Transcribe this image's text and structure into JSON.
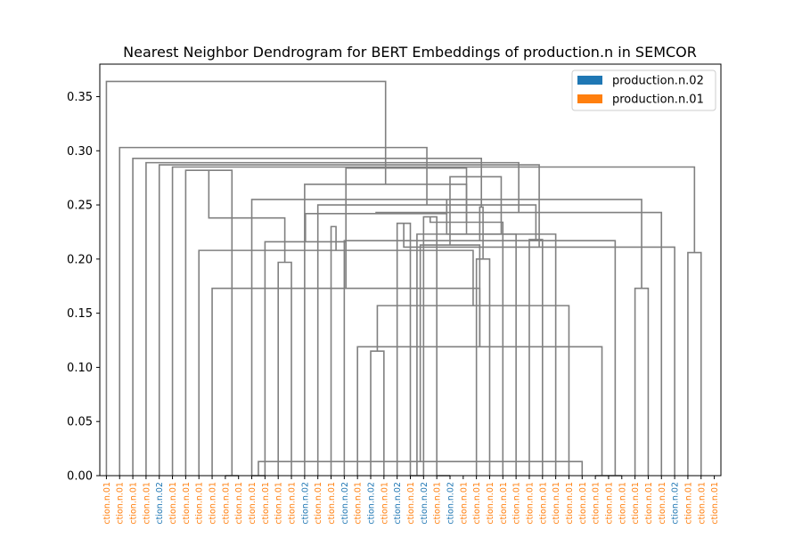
{
  "chart_data": {
    "type": "dendrogram",
    "title": "Nearest Neighbor Dendrogram for BERT Embeddings of production.n in SEMCOR",
    "xlabel": "",
    "ylabel": "",
    "ylim": [
      0,
      0.38
    ],
    "yticks": [
      0.0,
      0.05,
      0.1,
      0.15,
      0.2,
      0.25,
      0.3,
      0.35
    ],
    "ytick_labels": [
      "0.00",
      "0.05",
      "0.10",
      "0.15",
      "0.20",
      "0.25",
      "0.30",
      "0.35"
    ],
    "grid": false,
    "legend_position": "top-right",
    "legend": [
      {
        "label": "production.n.02",
        "color": "#1f77b4"
      },
      {
        "label": "production.n.01",
        "color": "#ff7f0e"
      }
    ],
    "link_color": "#808080",
    "leaf_labels": [
      "ction.n.01",
      "ction.n.01",
      "ction.n.01",
      "ction.n.01",
      "ction.n.02",
      "ction.n.01",
      "ction.n.01",
      "ction.n.01",
      "ction.n.01",
      "ction.n.01",
      "ction.n.01",
      "ction.n.01",
      "ction.n.01",
      "ction.n.01",
      "ction.n.01",
      "ction.n.02",
      "ction.n.01",
      "ction.n.01",
      "ction.n.02",
      "ction.n.01",
      "ction.n.02",
      "ction.n.01",
      "ction.n.02",
      "ction.n.01",
      "ction.n.02",
      "ction.n.01",
      "ction.n.02",
      "ction.n.01",
      "ction.n.01",
      "ction.n.01",
      "ction.n.01",
      "ction.n.01",
      "ction.n.01",
      "ction.n.01",
      "ction.n.01",
      "ction.n.01",
      "ction.n.01",
      "ction.n.01",
      "ction.n.01",
      "ction.n.01",
      "ction.n.01",
      "ction.n.01",
      "ction.n.01",
      "ction.n.02",
      "ction.n.01",
      "ction.n.01",
      "ction.n.01"
    ],
    "merges": [
      [
        11,
        12,
        0.0
      ],
      [
        37,
        38,
        0.0
      ],
      [
        38,
        39,
        0.0
      ],
      [
        20,
        21,
        0.115
      ],
      [
        19,
        48,
        0.119
      ],
      [
        36,
        47,
        0.013
      ],
      [
        35,
        50,
        0.157
      ],
      [
        9,
        10,
        0.0
      ],
      [
        8,
        51,
        0.173
      ],
      [
        40,
        41,
        0.173
      ],
      [
        51,
        52,
        0.213
      ],
      [
        7,
        53,
        0.208
      ],
      [
        6,
        54,
        0.282
      ],
      [
        13,
        14,
        0.197
      ],
      [
        12,
        55,
        0.216
      ],
      [
        11,
        56,
        0.255
      ],
      [
        18,
        49,
        0.217
      ],
      [
        17,
        58,
        0.23
      ],
      [
        23,
        24,
        0.0
      ],
      [
        24,
        25,
        0.239
      ],
      [
        59,
        60,
        0.238
      ],
      [
        25,
        26,
        0.0
      ],
      [
        22,
        23,
        0.233
      ],
      [
        61,
        62,
        0.242
      ],
      [
        28,
        29,
        0.2
      ],
      [
        32,
        33,
        0.218
      ],
      [
        31,
        65,
        0.223
      ],
      [
        34,
        62,
        0.223
      ],
      [
        30,
        66,
        0.234
      ],
      [
        44,
        45,
        0.206
      ],
      [
        43,
        69,
        0.211
      ],
      [
        42,
        70,
        0.243
      ],
      [
        63,
        71,
        0.248
      ],
      [
        16,
        72,
        0.25
      ],
      [
        15,
        73,
        0.269
      ],
      [
        57,
        74,
        0.276
      ],
      [
        55,
        75,
        0.284
      ],
      [
        5,
        76,
        0.285
      ],
      [
        4,
        77,
        0.287
      ],
      [
        3,
        78,
        0.289
      ],
      [
        2,
        79,
        0.293
      ],
      [
        1,
        80,
        0.303
      ],
      [
        0,
        81,
        0.364
      ]
    ],
    "links": [
      {
        "x1": 0,
        "x2": 2.25,
        "h1": 0.0,
        "h2": 0.0,
        "h": 0.364
      },
      {
        "x1": 1,
        "x2": 3.5,
        "h1": 0.0,
        "h2": 0.0,
        "h": 0.303
      },
      {
        "x1": 2,
        "x2": 5.0,
        "h1": 0.0,
        "h2": 0.0,
        "h": 0.293
      },
      {
        "x1": 3,
        "x2": 4,
        "h1": 0.0,
        "h2": 0.0,
        "h": 0.0
      },
      {
        "x1": 3.5,
        "x2": 7.0,
        "h1": 0.0,
        "h2": 0.0,
        "h": 0.289
      },
      {
        "x1": 5,
        "x2": 9.0,
        "h1": 0.0,
        "h2": 0.0,
        "h": 0.287
      },
      {
        "x1": 6,
        "x2": 9.5,
        "h1": 0.0,
        "h2": 0.0,
        "h": 0.282
      },
      {
        "x1": 7,
        "x2": 10,
        "h1": 0.0,
        "h2": 0.0,
        "h": 0.208
      },
      {
        "x1": 9,
        "x2": 10,
        "h1": 0.0,
        "h2": 0.0,
        "h": 0.173
      },
      {
        "x1": 10,
        "x2": 11,
        "h1": 0.0,
        "h2": 0.0,
        "h": 0.0
      },
      {
        "x1": 6.5,
        "x2": 14.5,
        "h1": 0.282,
        "h2": 0.0,
        "h": 0.285
      },
      {
        "x1": 12,
        "x2": 13.75,
        "h1": 0.0,
        "h2": 0.0,
        "h": 0.255
      },
      {
        "x1": 13,
        "x2": 14.5,
        "h1": 0.0,
        "h2": 0.0,
        "h": 0.216
      },
      {
        "x1": 14,
        "x2": 15,
        "h1": 0.0,
        "h2": 0.0,
        "h": 0.197
      },
      {
        "x1": 12.875,
        "x2": 17.5,
        "h1": 0.255,
        "h2": 0.0,
        "h": 0.284
      },
      {
        "x1": 16,
        "x2": 22.0,
        "h1": 0.0,
        "h2": 0.0,
        "h": 0.276
      },
      {
        "x1": 18,
        "x2": 25.0,
        "h1": 0.0,
        "h2": 0.0,
        "h": 0.269
      },
      {
        "x1": 19,
        "x2": 30.0,
        "h1": 0.0,
        "h2": 0.0,
        "h": 0.25
      },
      {
        "x1": 17,
        "x2": 18,
        "h1": 0.0,
        "h2": 0.0,
        "h": 0.185
      },
      {
        "x1": 20,
        "x2": 22.0,
        "h1": 0.0,
        "h2": 0.0,
        "h": 0.23
      },
      {
        "x1": 21,
        "x2": 22.5,
        "h1": 0.0,
        "h2": 0.0,
        "h": 0.217
      },
      {
        "x1": 22,
        "x2": 23,
        "h1": 0.0,
        "h2": 0.0,
        "h": 0.119
      },
      {
        "x1": 23,
        "x2": 24,
        "h1": 0.0,
        "h2": 0.0,
        "h": 0.115
      },
      {
        "x1": 21.0,
        "x2": 25.5,
        "h1": 0.23,
        "h2": 0.0,
        "h": 0.238
      },
      {
        "x1": 25,
        "x2": 26,
        "h1": 0.0,
        "h2": 0.0,
        "h": 0.233
      },
      {
        "x1": 23.25,
        "x2": 27.0,
        "h1": 0.238,
        "h2": 0.0,
        "h": 0.242
      },
      {
        "x1": 27,
        "x2": 28,
        "h1": 0.0,
        "h2": 0.0,
        "h": 0.239
      },
      {
        "x1": 25.125,
        "x2": 35.5,
        "h1": 0.242,
        "h2": 0.0,
        "h": 0.248
      },
      {
        "x1": 29,
        "x2": 30,
        "h1": 0.0,
        "h2": 0.0,
        "h": 0.2
      }
    ]
  }
}
